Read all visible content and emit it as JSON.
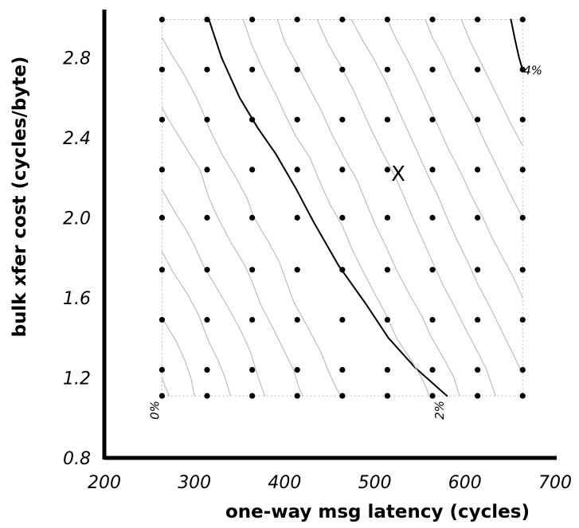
{
  "chart_data": {
    "type": "contour",
    "xlabel": "one-way msg latency (cycles)",
    "ylabel": "bulk xfer cost (cycles/byte)",
    "xlim": [
      200,
      700
    ],
    "ylim": [
      0.8,
      3.0
    ],
    "x_ticks": [
      "200",
      "300",
      "400",
      "500",
      "600",
      "700"
    ],
    "y_ticks": [
      "0.8",
      "1.2",
      "1.6",
      "2.0",
      "2.4",
      "2.8"
    ],
    "x_tick_values": [
      200,
      300,
      400,
      500,
      600,
      700
    ],
    "y_tick_values": [
      0.8,
      1.2,
      1.6,
      2.0,
      2.4,
      2.8
    ],
    "grid_points": {
      "x": [
        264,
        314,
        364,
        414,
        464,
        514,
        564,
        614,
        664
      ],
      "y": [
        1.11,
        1.24,
        1.49,
        1.74,
        2.0,
        2.24,
        2.49,
        2.74,
        2.99
      ]
    },
    "sample_region": {
      "x": [
        264,
        664
      ],
      "y": [
        1.11,
        2.99
      ]
    },
    "marker": {
      "symbol": "X",
      "x": 526,
      "y": 2.22
    },
    "contour_labels": [
      {
        "text": "0%",
        "x": 264,
        "y": 1.11
      },
      {
        "text": "2%",
        "x": 580,
        "y": 1.11
      },
      {
        "text": "4%",
        "x": 664,
        "y": 2.74
      }
    ],
    "contours": [
      {
        "level": "2%",
        "emphasis": "bold",
        "points": [
          [
            316,
            2.99
          ],
          [
            330,
            2.8
          ],
          [
            350,
            2.6
          ],
          [
            370,
            2.45
          ],
          [
            390,
            2.32
          ],
          [
            412,
            2.15
          ],
          [
            432,
            1.98
          ],
          [
            460,
            1.76
          ],
          [
            490,
            1.57
          ],
          [
            515,
            1.4
          ],
          [
            545,
            1.25
          ],
          [
            565,
            1.17
          ],
          [
            580,
            1.11
          ]
        ]
      },
      {
        "level": "4%",
        "emphasis": "bold",
        "points": [
          [
            651,
            2.99
          ],
          [
            655,
            2.9
          ],
          [
            660,
            2.8
          ],
          [
            664,
            2.74
          ]
        ]
      },
      {
        "level": "",
        "emphasis": "light",
        "points": [
          [
            264,
            2.9
          ],
          [
            274,
            2.82
          ],
          [
            288,
            2.72
          ],
          [
            302,
            2.6
          ],
          [
            310,
            2.52
          ],
          [
            316,
            2.45
          ],
          [
            330,
            2.32
          ],
          [
            346,
            2.2
          ],
          [
            358,
            2.1
          ],
          [
            366,
            2.0
          ],
          [
            382,
            1.88
          ],
          [
            394,
            1.78
          ],
          [
            402,
            1.68
          ],
          [
            410,
            1.58
          ],
          [
            426,
            1.45
          ],
          [
            440,
            1.33
          ],
          [
            448,
            1.24
          ],
          [
            456,
            1.16
          ],
          [
            462,
            1.11
          ]
        ]
      },
      {
        "level": "",
        "emphasis": "light",
        "points": [
          [
            264,
            2.55
          ],
          [
            270,
            2.5
          ],
          [
            292,
            2.34
          ],
          [
            306,
            2.24
          ],
          [
            316,
            2.1
          ],
          [
            326,
            2.0
          ],
          [
            340,
            1.88
          ],
          [
            356,
            1.76
          ],
          [
            364,
            1.68
          ],
          [
            374,
            1.56
          ],
          [
            388,
            1.44
          ],
          [
            400,
            1.33
          ],
          [
            410,
            1.24
          ],
          [
            416,
            1.15
          ],
          [
            420,
            1.11
          ]
        ]
      },
      {
        "level": "",
        "emphasis": "light",
        "points": [
          [
            264,
            2.14
          ],
          [
            278,
            2.03
          ],
          [
            292,
            1.93
          ],
          [
            300,
            1.86
          ],
          [
            310,
            1.76
          ],
          [
            326,
            1.64
          ],
          [
            340,
            1.53
          ],
          [
            352,
            1.43
          ],
          [
            362,
            1.33
          ],
          [
            368,
            1.24
          ],
          [
            374,
            1.16
          ],
          [
            378,
            1.11
          ]
        ]
      },
      {
        "level": "",
        "emphasis": "light",
        "points": [
          [
            264,
            1.83
          ],
          [
            276,
            1.73
          ],
          [
            292,
            1.62
          ],
          [
            304,
            1.52
          ],
          [
            316,
            1.38
          ],
          [
            326,
            1.29
          ],
          [
            334,
            1.2
          ],
          [
            340,
            1.11
          ]
        ]
      },
      {
        "level": "",
        "emphasis": "light",
        "points": [
          [
            264,
            1.5
          ],
          [
            280,
            1.38
          ],
          [
            290,
            1.28
          ],
          [
            296,
            1.2
          ],
          [
            300,
            1.11
          ]
        ]
      },
      {
        "level": "",
        "emphasis": "light",
        "points": [
          [
            264,
            1.2
          ],
          [
            268,
            1.15
          ],
          [
            272,
            1.11
          ]
        ]
      },
      {
        "level": "",
        "emphasis": "light",
        "points": [
          [
            354,
            2.99
          ],
          [
            364,
            2.86
          ],
          [
            378,
            2.72
          ],
          [
            392,
            2.6
          ],
          [
            400,
            2.52
          ],
          [
            412,
            2.41
          ],
          [
            428,
            2.3
          ],
          [
            438,
            2.19
          ],
          [
            450,
            2.07
          ],
          [
            464,
            1.96
          ],
          [
            474,
            1.85
          ],
          [
            486,
            1.74
          ],
          [
            500,
            1.62
          ],
          [
            512,
            1.52
          ],
          [
            524,
            1.4
          ],
          [
            540,
            1.29
          ],
          [
            552,
            1.2
          ],
          [
            558,
            1.14
          ],
          [
            560,
            1.11
          ]
        ]
      },
      {
        "level": "",
        "emphasis": "light",
        "points": [
          [
            392,
            2.99
          ],
          [
            400,
            2.88
          ],
          [
            412,
            2.78
          ],
          [
            426,
            2.66
          ],
          [
            440,
            2.54
          ],
          [
            452,
            2.42
          ],
          [
            466,
            2.3
          ],
          [
            480,
            2.19
          ],
          [
            490,
            2.08
          ],
          [
            500,
            1.97
          ],
          [
            512,
            1.86
          ],
          [
            524,
            1.74
          ],
          [
            538,
            1.62
          ],
          [
            552,
            1.51
          ],
          [
            562,
            1.41
          ],
          [
            576,
            1.3
          ],
          [
            588,
            1.2
          ],
          [
            594,
            1.11
          ]
        ]
      },
      {
        "level": "",
        "emphasis": "light",
        "points": [
          [
            436,
            2.99
          ],
          [
            448,
            2.87
          ],
          [
            462,
            2.76
          ],
          [
            476,
            2.64
          ],
          [
            488,
            2.52
          ],
          [
            496,
            2.44
          ],
          [
            508,
            2.33
          ],
          [
            522,
            2.21
          ],
          [
            532,
            2.11
          ],
          [
            542,
            2.0
          ],
          [
            554,
            1.88
          ],
          [
            566,
            1.76
          ],
          [
            576,
            1.66
          ],
          [
            588,
            1.56
          ],
          [
            600,
            1.45
          ],
          [
            614,
            1.33
          ],
          [
            624,
            1.24
          ],
          [
            630,
            1.16
          ],
          [
            634,
            1.11
          ]
        ]
      },
      {
        "level": "",
        "emphasis": "light",
        "points": [
          [
            474,
            2.99
          ],
          [
            486,
            2.89
          ],
          [
            498,
            2.8
          ],
          [
            512,
            2.68
          ],
          [
            524,
            2.56
          ],
          [
            536,
            2.44
          ],
          [
            546,
            2.34
          ],
          [
            558,
            2.22
          ],
          [
            570,
            2.11
          ],
          [
            580,
            2.0
          ],
          [
            590,
            1.9
          ],
          [
            602,
            1.79
          ],
          [
            614,
            1.67
          ],
          [
            626,
            1.57
          ],
          [
            638,
            1.46
          ],
          [
            650,
            1.35
          ],
          [
            664,
            1.22
          ]
        ]
      },
      {
        "level": "",
        "emphasis": "light",
        "points": [
          [
            514,
            2.99
          ],
          [
            524,
            2.89
          ],
          [
            536,
            2.79
          ],
          [
            548,
            2.68
          ],
          [
            560,
            2.56
          ],
          [
            572,
            2.44
          ],
          [
            582,
            2.34
          ],
          [
            596,
            2.22
          ],
          [
            608,
            2.1
          ],
          [
            620,
            2.0
          ],
          [
            630,
            1.9
          ],
          [
            642,
            1.8
          ],
          [
            654,
            1.7
          ],
          [
            664,
            1.6
          ]
        ]
      },
      {
        "level": "",
        "emphasis": "light",
        "points": [
          [
            556,
            2.99
          ],
          [
            564,
            2.9
          ],
          [
            576,
            2.8
          ],
          [
            586,
            2.7
          ],
          [
            600,
            2.58
          ],
          [
            614,
            2.46
          ],
          [
            624,
            2.36
          ],
          [
            636,
            2.25
          ],
          [
            648,
            2.14
          ],
          [
            664,
            2.0
          ]
        ]
      },
      {
        "level": "",
        "emphasis": "light",
        "points": [
          [
            596,
            2.99
          ],
          [
            606,
            2.88
          ],
          [
            616,
            2.79
          ],
          [
            628,
            2.68
          ],
          [
            640,
            2.57
          ],
          [
            652,
            2.46
          ],
          [
            664,
            2.36
          ]
        ]
      }
    ]
  }
}
